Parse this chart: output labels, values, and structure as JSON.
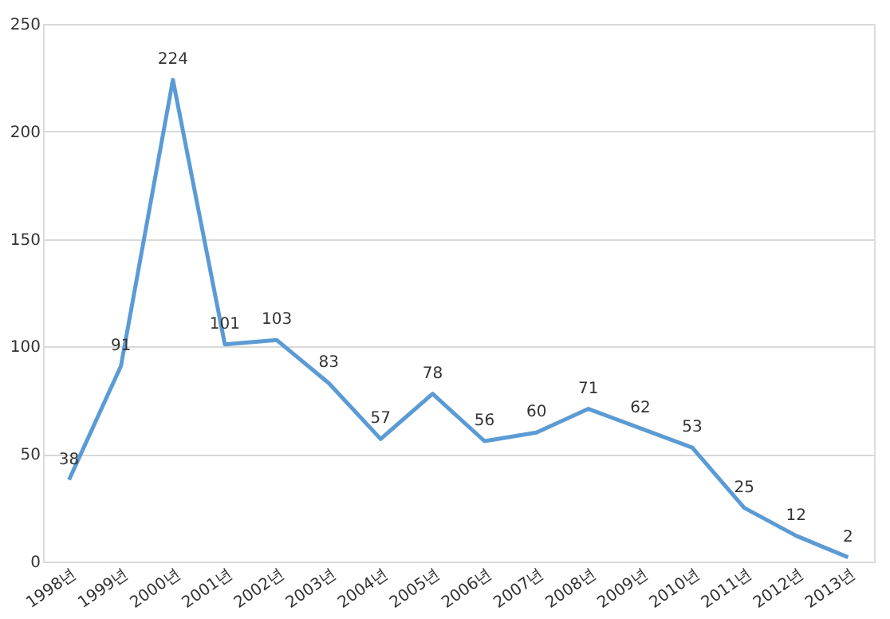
{
  "chart_data": {
    "type": "line",
    "categories": [
      "1998년",
      "1999년",
      "2000년",
      "2001년",
      "2002년",
      "2003년",
      "2004년",
      "2005년",
      "2006년",
      "2007년",
      "2008년",
      "2009년",
      "2010년",
      "2011년",
      "2012년",
      "2013년"
    ],
    "series": [
      {
        "color": "#5b9bd5",
        "values": [
          38,
          91,
          224,
          101,
          103,
          83,
          57,
          78,
          56,
          60,
          71,
          62,
          53,
          25,
          12,
          2
        ]
      }
    ],
    "ylim": [
      0,
      250
    ],
    "yticks": [
      0,
      50,
      100,
      150,
      200,
      250
    ],
    "grid": "y",
    "data_labels": true,
    "marker": "none",
    "line_style": "solid"
  }
}
